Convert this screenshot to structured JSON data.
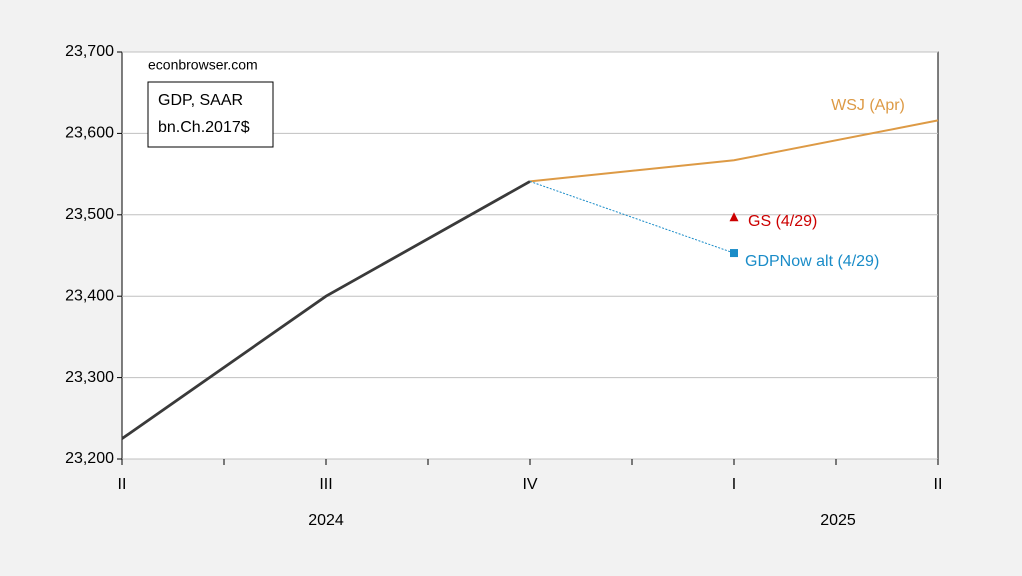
{
  "chart_data": {
    "type": "line",
    "annotations": [
      "econbrowser.com",
      "GDP, SAAR",
      "bn.Ch.2017$"
    ],
    "categories": [
      "II",
      "III",
      "IV",
      "I",
      "II"
    ],
    "year_labels": [
      "2024",
      "2025"
    ],
    "series": [
      {
        "name": "GDP",
        "color": "#3a3a3a",
        "values": [
          23225,
          23400,
          23541,
          null,
          null
        ],
        "show_name": false
      },
      {
        "name": "WSJ (Apr)",
        "color": "#dd9a45",
        "values": [
          null,
          null,
          23541,
          23567,
          23616
        ],
        "show_name": true
      },
      {
        "name": "GS (4/29)",
        "color": "#cc0000",
        "values": [
          null,
          null,
          null,
          23497,
          null
        ],
        "marker": "triangle",
        "line": false,
        "show_name": true
      },
      {
        "name": "GDPNow alt (4/29)",
        "color": "#1a8cc8",
        "values": [
          null,
          null,
          23541,
          23453,
          null
        ],
        "marker": "square",
        "dashed": true,
        "show_name": true
      }
    ],
    "ylim": [
      23200,
      23700
    ],
    "yticks": [
      {
        "value": 23200,
        "label": "23,200"
      },
      {
        "value": 23300,
        "label": "23,300"
      },
      {
        "value": 23400,
        "label": "23,400"
      },
      {
        "value": 23500,
        "label": "23,500"
      },
      {
        "value": 23600,
        "label": "23,600"
      },
      {
        "value": 23700,
        "label": "23,700"
      }
    ],
    "grid": true
  }
}
